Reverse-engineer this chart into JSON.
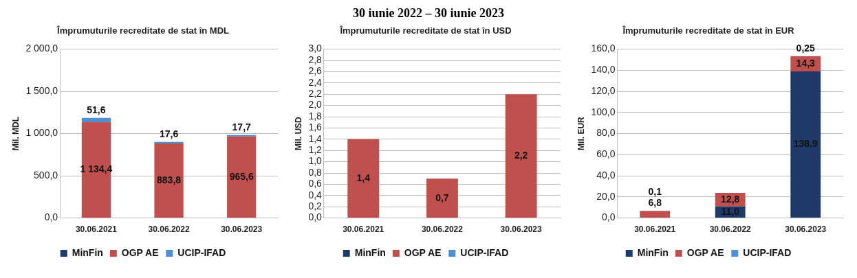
{
  "chart_data": [
    {
      "type": "bar",
      "title": "Împrumuturile recreditate de stat în MDL",
      "ylabel": "Mil. MDL",
      "annotations": [
        "30 iunie 2022 – 30 iunie 2023"
      ],
      "categories": [
        "30.06.2021",
        "30.06.2022",
        "30.06.2023"
      ],
      "stacked": true,
      "legend": "bottom",
      "grid": "y",
      "ylim": [
        0,
        2000
      ],
      "yticks": [
        {
          "value": 0,
          "label": "0,0"
        },
        {
          "value": 500,
          "label": "500,0"
        },
        {
          "value": 1000,
          "label": "1 000,0"
        },
        {
          "value": 1500,
          "label": "1 500,0"
        },
        {
          "value": 2000,
          "label": "2 000,0"
        }
      ],
      "series": [
        {
          "name": "MinFin",
          "color": "#1f3a68",
          "values": [
            null,
            null,
            null
          ]
        },
        {
          "name": "OGP AE",
          "color": "#c0504d",
          "values": [
            1134.4,
            883.8,
            965.6
          ],
          "value_labels": [
            "1 134,4",
            "883,8",
            "965,6"
          ]
        },
        {
          "name": "UCIP-IFAD",
          "color": "#4f8fd6",
          "values": [
            51.6,
            17.6,
            17.7
          ],
          "value_labels": [
            "51,6",
            "17,6",
            "17,7"
          ]
        }
      ]
    },
    {
      "type": "bar",
      "title": "Împrumuturile recreditate de stat în USD",
      "ylabel": "Mil. USD",
      "categories": [
        "30.06.2021",
        "30.06.2022",
        "30.06.2023"
      ],
      "stacked": true,
      "legend": "bottom",
      "grid": "y",
      "ylim": [
        0,
        3
      ],
      "yticks": [
        {
          "value": 0,
          "label": "0,0"
        },
        {
          "value": 0.2,
          "label": "0,2"
        },
        {
          "value": 0.4,
          "label": "0,4"
        },
        {
          "value": 0.6,
          "label": "0,6"
        },
        {
          "value": 0.8,
          "label": "0,8"
        },
        {
          "value": 1,
          "label": "1,0"
        },
        {
          "value": 1.2,
          "label": "1,2"
        },
        {
          "value": 1.4,
          "label": "1,4"
        },
        {
          "value": 1.6,
          "label": "1,6"
        },
        {
          "value": 1.8,
          "label": "1,8"
        },
        {
          "value": 2,
          "label": "2,0"
        },
        {
          "value": 2.2,
          "label": "2,2"
        },
        {
          "value": 2.4,
          "label": "2,4"
        },
        {
          "value": 2.6,
          "label": "2,6"
        },
        {
          "value": 2.8,
          "label": "2,8"
        },
        {
          "value": 3,
          "label": "3,0"
        }
      ],
      "series": [
        {
          "name": "MinFin",
          "color": "#1f3a68",
          "values": [
            null,
            null,
            null
          ]
        },
        {
          "name": "OGP AE",
          "color": "#c0504d",
          "values": [
            1.4,
            0.7,
            2.2
          ],
          "value_labels": [
            "1,4",
            "0,7",
            "2,2"
          ]
        },
        {
          "name": "UCIP-IFAD",
          "color": "#4f8fd6",
          "values": [
            null,
            null,
            null
          ]
        }
      ]
    },
    {
      "type": "bar",
      "title": "Împrumuturile recreditate de stat în EUR",
      "ylabel": "Mil. EUR",
      "categories": [
        "30.06.2021",
        "30.06.2022",
        "30.06.2023"
      ],
      "stacked": true,
      "legend": "bottom",
      "grid": "y",
      "ylim": [
        0,
        160
      ],
      "yticks": [
        {
          "value": 0,
          "label": "0,0"
        },
        {
          "value": 20,
          "label": "20,0"
        },
        {
          "value": 40,
          "label": "40,0"
        },
        {
          "value": 60,
          "label": "60,0"
        },
        {
          "value": 80,
          "label": "80,0"
        },
        {
          "value": 100,
          "label": "100,0"
        },
        {
          "value": 120,
          "label": "120,0"
        },
        {
          "value": 140,
          "label": "140,0"
        },
        {
          "value": 160,
          "label": "160,0"
        }
      ],
      "series": [
        {
          "name": "MinFin",
          "color": "#1f3a68",
          "values": [
            null,
            11.0,
            138.9
          ],
          "value_labels": [
            null,
            "11,0",
            "138,9"
          ]
        },
        {
          "name": "OGP AE",
          "color": "#c0504d",
          "values": [
            6.8,
            12.8,
            14.3
          ],
          "value_labels": [
            "6,8",
            "12,8",
            "14,3"
          ]
        },
        {
          "name": "UCIP-IFAD",
          "color": "#4f8fd6",
          "values": [
            0.1,
            null,
            0.25
          ],
          "value_labels": [
            "0,1",
            null,
            "0,25"
          ]
        }
      ]
    }
  ]
}
